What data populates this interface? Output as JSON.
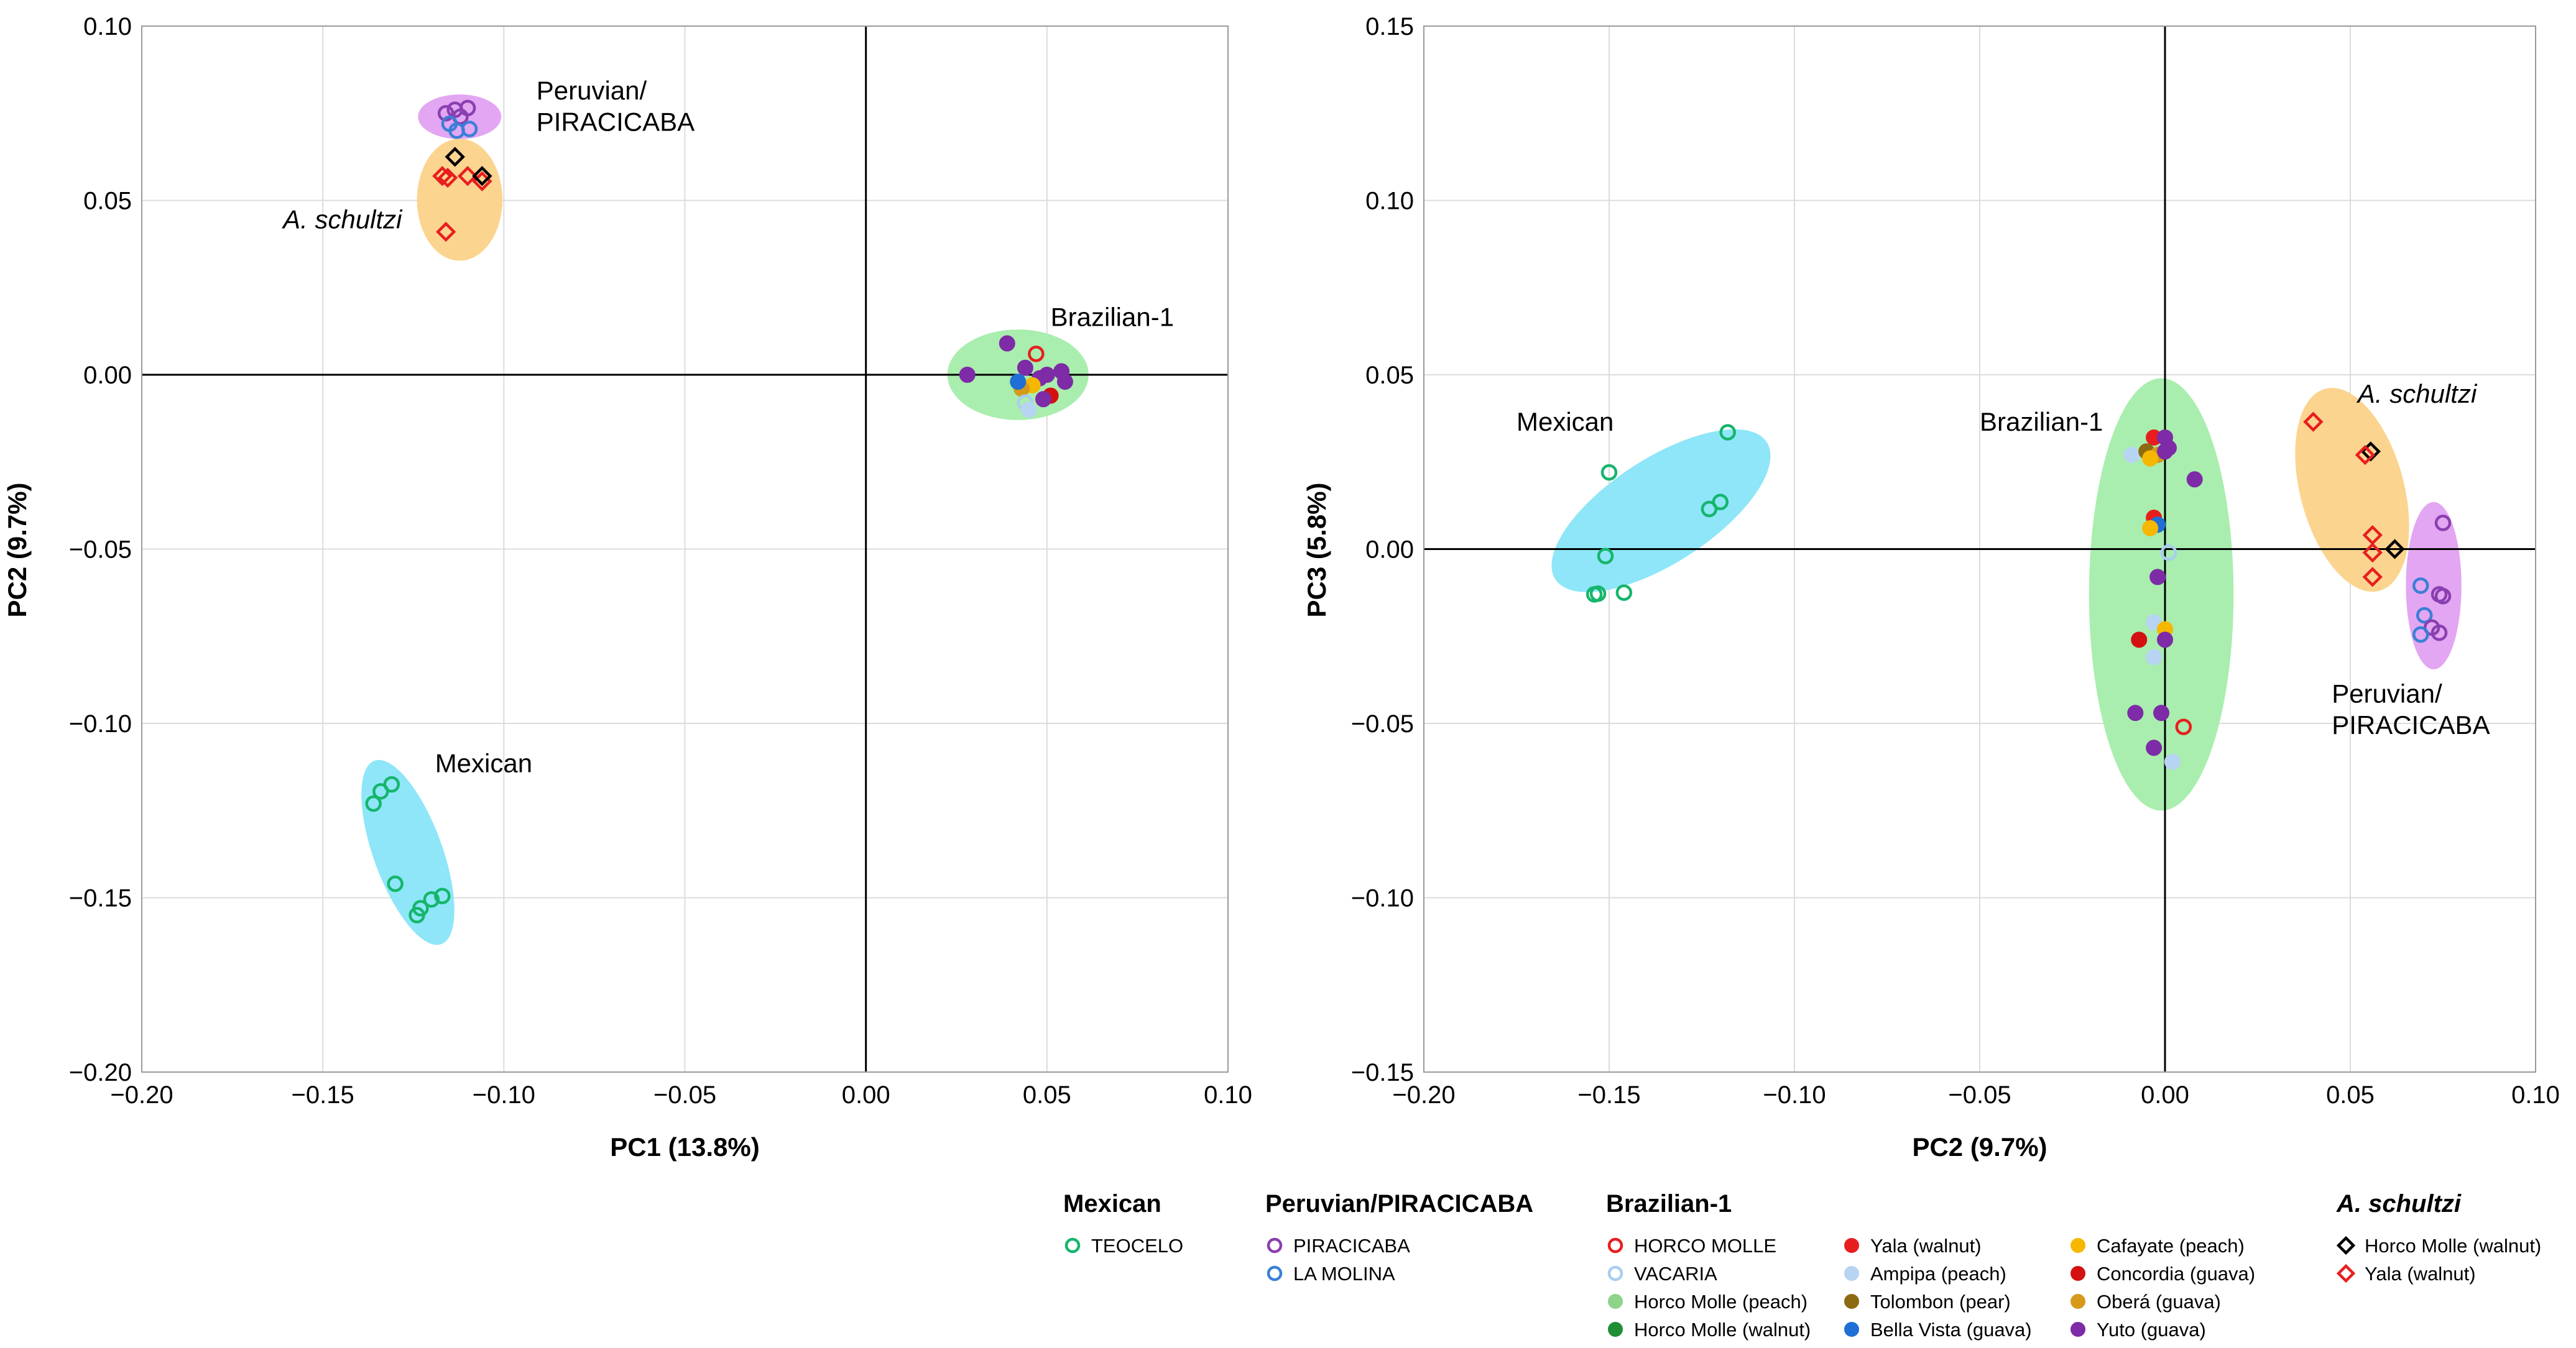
{
  "colors": {
    "teocelo": "#16b56c",
    "piracicaba": "#8a3fb0",
    "la_molina": "#3a7fd6",
    "horco_molle": "#e81e1e",
    "vacaria": "#a8cdf0",
    "horco_molle_peach": "#8dd38a",
    "horco_molle_walnut": "#1f8f35",
    "yala_walnut": "#e81e1e",
    "ampipa_peach": "#b7d4f2",
    "tolombon_pear": "#8c6a12",
    "bella_vista_guava": "#1f6fd6",
    "cafayate_peach": "#f5b700",
    "concordia_guava": "#d41111",
    "obera_guava": "#d69a1a",
    "yuto_guava": "#7d2ba6",
    "schultzi_horco": "#000000",
    "schultzi_yala": "#e81e1e",
    "ellipse_mexican": "#8ee6f8",
    "ellipse_peruvian": "#e3a6f2",
    "ellipse_schultzi": "#fbd48f",
    "ellipse_brazilian": "#a9eeae"
  },
  "chart_data": [
    {
      "type": "scatter",
      "xlabel": "PC1 (13.8%)",
      "ylabel": "PC2 (9.7%)",
      "xlim": [
        -0.2,
        0.1
      ],
      "ylim": [
        -0.2,
        0.1
      ],
      "xticks": [
        "−0.20",
        "−0.15",
        "−0.10",
        "−0.05",
        "0.00",
        "0.05",
        "0.10"
      ],
      "yticks": [
        "0.10",
        "0.05",
        "0.00",
        "−0.05",
        "−0.10",
        "−0.15",
        "−0.20"
      ],
      "group_labels": [
        {
          "text": "Peruvian/",
          "x": -0.091,
          "y": 0.079
        },
        {
          "text": "PIRACICABA",
          "x": -0.091,
          "y": 0.07
        },
        {
          "text": "A. schultzi",
          "x": -0.161,
          "y": 0.042,
          "italic": true
        },
        {
          "text": "Brazilian-1",
          "x": 0.051,
          "y": 0.014
        },
        {
          "text": "Mexican",
          "x": -0.119,
          "y": -0.114
        }
      ],
      "ellipses": [
        {
          "group": "peruvian",
          "color": "ellipse_peruvian",
          "cx": -0.1122,
          "cy": 0.074,
          "rx": 0.0115,
          "ry": 0.0064,
          "angle": 0
        },
        {
          "group": "schultzi",
          "color": "ellipse_schultzi",
          "cx": -0.1122,
          "cy": 0.0502,
          "rx": 0.0118,
          "ry": 0.0175,
          "angle": 0
        },
        {
          "group": "brazilian",
          "color": "ellipse_brazilian",
          "cx": 0.042,
          "cy": 0.0,
          "rx": 0.0195,
          "ry": 0.013,
          "angle": 0
        },
        {
          "group": "mexican",
          "color": "ellipse_mexican",
          "cx": -0.1265,
          "cy": -0.137,
          "rx": 0.0095,
          "ry": 0.028,
          "angle": -20
        }
      ],
      "points": [
        {
          "x": -0.1135,
          "y": 0.076,
          "s": "piracicaba",
          "m": "co"
        },
        {
          "x": -0.116,
          "y": 0.075,
          "s": "piracicaba",
          "m": "co"
        },
        {
          "x": -0.11,
          "y": 0.0765,
          "s": "piracicaba",
          "m": "co"
        },
        {
          "x": -0.112,
          "y": 0.074,
          "s": "piracicaba",
          "m": "co"
        },
        {
          "x": -0.115,
          "y": 0.072,
          "s": "la_molina",
          "m": "co"
        },
        {
          "x": -0.113,
          "y": 0.07,
          "s": "la_molina",
          "m": "co"
        },
        {
          "x": -0.1095,
          "y": 0.0705,
          "s": "la_molina",
          "m": "co"
        },
        {
          "x": -0.1135,
          "y": 0.0625,
          "s": "schultzi_horco",
          "m": "do"
        },
        {
          "x": -0.117,
          "y": 0.057,
          "s": "schultzi_yala",
          "m": "do"
        },
        {
          "x": -0.1155,
          "y": 0.0565,
          "s": "schultzi_yala",
          "m": "do"
        },
        {
          "x": -0.11,
          "y": 0.057,
          "s": "schultzi_yala",
          "m": "do"
        },
        {
          "x": -0.106,
          "y": 0.0555,
          "s": "schultzi_yala",
          "m": "do"
        },
        {
          "x": -0.106,
          "y": 0.057,
          "s": "schultzi_horco",
          "m": "do"
        },
        {
          "x": -0.116,
          "y": 0.041,
          "s": "schultzi_yala",
          "m": "do"
        },
        {
          "x": 0.039,
          "y": 0.009,
          "s": "yuto_guava",
          "m": "cf"
        },
        {
          "x": 0.047,
          "y": 0.006,
          "s": "horco_molle",
          "m": "co"
        },
        {
          "x": 0.028,
          "y": 0.0,
          "s": "yuto_guava",
          "m": "cf"
        },
        {
          "x": 0.044,
          "y": 0.002,
          "s": "yuto_guava",
          "m": "cf"
        },
        {
          "x": 0.054,
          "y": 0.001,
          "s": "yuto_guava",
          "m": "cf"
        },
        {
          "x": 0.05,
          "y": 0.0,
          "s": "yuto_guava",
          "m": "cf"
        },
        {
          "x": 0.048,
          "y": -0.001,
          "s": "yuto_guava",
          "m": "cf"
        },
        {
          "x": 0.055,
          "y": -0.002,
          "s": "yuto_guava",
          "m": "cf"
        },
        {
          "x": 0.046,
          "y": -0.003,
          "s": "cafayate_peach",
          "m": "cf"
        },
        {
          "x": 0.043,
          "y": -0.004,
          "s": "obera_guava",
          "m": "cf"
        },
        {
          "x": 0.051,
          "y": -0.006,
          "s": "concordia_guava",
          "m": "cf"
        },
        {
          "x": 0.049,
          "y": -0.007,
          "s": "yuto_guava",
          "m": "cf"
        },
        {
          "x": 0.044,
          "y": -0.008,
          "s": "vacaria",
          "m": "co"
        },
        {
          "x": 0.045,
          "y": -0.01,
          "s": "ampipa_peach",
          "m": "cf"
        },
        {
          "x": 0.042,
          "y": -0.002,
          "s": "bella_vista_guava",
          "m": "cf"
        },
        {
          "x": -0.131,
          "y": -0.1175,
          "s": "teocelo",
          "m": "co"
        },
        {
          "x": -0.134,
          "y": -0.1195,
          "s": "teocelo",
          "m": "co"
        },
        {
          "x": -0.136,
          "y": -0.123,
          "s": "teocelo",
          "m": "co"
        },
        {
          "x": -0.13,
          "y": -0.146,
          "s": "teocelo",
          "m": "co"
        },
        {
          "x": -0.12,
          "y": -0.1505,
          "s": "teocelo",
          "m": "co"
        },
        {
          "x": -0.117,
          "y": -0.1495,
          "s": "teocelo",
          "m": "co"
        },
        {
          "x": -0.123,
          "y": -0.153,
          "s": "teocelo",
          "m": "co"
        },
        {
          "x": -0.124,
          "y": -0.155,
          "s": "teocelo",
          "m": "co"
        }
      ]
    },
    {
      "type": "scatter",
      "xlabel": "PC2 (9.7%)",
      "ylabel": "PC3 (5.8%)",
      "xlim": [
        -0.2,
        0.1
      ],
      "ylim": [
        -0.15,
        0.15
      ],
      "xticks": [
        "−0.20",
        "−0.15",
        "−0.10",
        "−0.05",
        "0.00",
        "0.05",
        "0.10"
      ],
      "yticks": [
        "0.15",
        "0.10",
        "0.05",
        "0.00",
        "−0.05",
        "−0.10",
        "−0.15"
      ],
      "group_labels": [
        {
          "text": "Mexican",
          "x": -0.175,
          "y": 0.034
        },
        {
          "text": "Brazilian-1",
          "x": -0.05,
          "y": 0.034
        },
        {
          "text": "A. schultzi",
          "x": 0.052,
          "y": 0.042,
          "italic": true
        },
        {
          "text": "Peruvian/",
          "x": 0.045,
          "y": -0.044
        },
        {
          "text": "PIRACICABA",
          "x": 0.045,
          "y": -0.053
        }
      ],
      "ellipses": [
        {
          "group": "mexican",
          "color": "ellipse_mexican",
          "cx": -0.136,
          "cy": 0.011,
          "rx": 0.034,
          "ry": 0.015,
          "angle": -33
        },
        {
          "group": "brazilian",
          "color": "ellipse_brazilian",
          "cx": -0.001,
          "cy": -0.013,
          "rx": 0.0195,
          "ry": 0.062,
          "angle": 0
        },
        {
          "group": "schultzi",
          "color": "ellipse_schultzi",
          "cx": 0.0505,
          "cy": 0.017,
          "rx": 0.014,
          "ry": 0.03,
          "angle": -15
        },
        {
          "group": "peruvian",
          "color": "ellipse_peruvian",
          "cx": 0.0725,
          "cy": -0.0105,
          "rx": 0.0075,
          "ry": 0.024,
          "angle": 0
        }
      ],
      "points": [
        {
          "x": -0.118,
          "y": 0.0335,
          "s": "teocelo",
          "m": "co"
        },
        {
          "x": -0.15,
          "y": 0.022,
          "s": "teocelo",
          "m": "co"
        },
        {
          "x": -0.12,
          "y": 0.0135,
          "s": "teocelo",
          "m": "co"
        },
        {
          "x": -0.123,
          "y": 0.0115,
          "s": "teocelo",
          "m": "co"
        },
        {
          "x": -0.151,
          "y": -0.002,
          "s": "teocelo",
          "m": "co"
        },
        {
          "x": -0.146,
          "y": -0.0125,
          "s": "teocelo",
          "m": "co"
        },
        {
          "x": -0.154,
          "y": -0.013,
          "s": "teocelo",
          "m": "co"
        },
        {
          "x": -0.153,
          "y": -0.0128,
          "s": "teocelo",
          "m": "co"
        },
        {
          "x": -0.003,
          "y": 0.032,
          "s": "yala_walnut",
          "m": "cf"
        },
        {
          "x": 0.0,
          "y": 0.032,
          "s": "yuto_guava",
          "m": "cf"
        },
        {
          "x": -0.009,
          "y": 0.027,
          "s": "ampipa_peach",
          "m": "cf"
        },
        {
          "x": -0.005,
          "y": 0.028,
          "s": "tolombon_pear",
          "m": "cf"
        },
        {
          "x": -0.002,
          "y": 0.027,
          "s": "obera_guava",
          "m": "cf"
        },
        {
          "x": 0.0,
          "y": 0.028,
          "s": "yuto_guava",
          "m": "cf"
        },
        {
          "x": -0.004,
          "y": 0.026,
          "s": "cafayate_peach",
          "m": "cf"
        },
        {
          "x": 0.001,
          "y": 0.029,
          "s": "yuto_guava",
          "m": "cf"
        },
        {
          "x": 0.008,
          "y": 0.02,
          "s": "yuto_guava",
          "m": "cf"
        },
        {
          "x": -0.003,
          "y": 0.009,
          "s": "yala_walnut",
          "m": "cf"
        },
        {
          "x": -0.002,
          "y": 0.007,
          "s": "bella_vista_guava",
          "m": "cf"
        },
        {
          "x": -0.004,
          "y": 0.006,
          "s": "cafayate_peach",
          "m": "cf"
        },
        {
          "x": 0.001,
          "y": -0.001,
          "s": "vacaria",
          "m": "co"
        },
        {
          "x": -0.002,
          "y": -0.008,
          "s": "yuto_guava",
          "m": "cf"
        },
        {
          "x": -0.003,
          "y": -0.021,
          "s": "ampipa_peach",
          "m": "cf"
        },
        {
          "x": 0.0,
          "y": -0.023,
          "s": "cafayate_peach",
          "m": "cf"
        },
        {
          "x": -0.007,
          "y": -0.026,
          "s": "concordia_guava",
          "m": "cf"
        },
        {
          "x": 0.0,
          "y": -0.026,
          "s": "yuto_guava",
          "m": "cf"
        },
        {
          "x": -0.003,
          "y": -0.031,
          "s": "ampipa_peach",
          "m": "cf"
        },
        {
          "x": -0.008,
          "y": -0.047,
          "s": "yuto_guava",
          "m": "cf"
        },
        {
          "x": -0.001,
          "y": -0.047,
          "s": "yuto_guava",
          "m": "cf"
        },
        {
          "x": 0.005,
          "y": -0.051,
          "s": "horco_molle",
          "m": "co"
        },
        {
          "x": -0.003,
          "y": -0.057,
          "s": "yuto_guava",
          "m": "cf"
        },
        {
          "x": 0.002,
          "y": -0.061,
          "s": "ampipa_peach",
          "m": "cf"
        },
        {
          "x": 0.04,
          "y": 0.0365,
          "s": "schultzi_yala",
          "m": "do"
        },
        {
          "x": 0.0555,
          "y": 0.028,
          "s": "schultzi_horco",
          "m": "do"
        },
        {
          "x": 0.054,
          "y": 0.027,
          "s": "schultzi_yala",
          "m": "do"
        },
        {
          "x": 0.056,
          "y": 0.004,
          "s": "schultzi_yala",
          "m": "do"
        },
        {
          "x": 0.056,
          "y": -0.001,
          "s": "schultzi_yala",
          "m": "do"
        },
        {
          "x": 0.062,
          "y": 0.0,
          "s": "schultzi_horco",
          "m": "do"
        },
        {
          "x": 0.056,
          "y": -0.008,
          "s": "schultzi_yala",
          "m": "do"
        },
        {
          "x": 0.075,
          "y": 0.0075,
          "s": "piracicaba",
          "m": "co"
        },
        {
          "x": 0.069,
          "y": -0.0105,
          "s": "la_molina",
          "m": "co"
        },
        {
          "x": 0.074,
          "y": -0.013,
          "s": "piracicaba",
          "m": "co"
        },
        {
          "x": 0.075,
          "y": -0.0135,
          "s": "piracicaba",
          "m": "co"
        },
        {
          "x": 0.07,
          "y": -0.019,
          "s": "la_molina",
          "m": "co"
        },
        {
          "x": 0.072,
          "y": -0.0225,
          "s": "piracicaba",
          "m": "co"
        },
        {
          "x": 0.074,
          "y": -0.024,
          "s": "piracicaba",
          "m": "co"
        },
        {
          "x": 0.069,
          "y": -0.0245,
          "s": "la_molina",
          "m": "co"
        }
      ]
    }
  ],
  "legend": {
    "groups": [
      {
        "title": "Mexican",
        "columns": [
          [
            {
              "label": "TEOCELO",
              "s": "teocelo",
              "m": "co"
            }
          ]
        ]
      },
      {
        "title": "Peruvian/PIRACICABA",
        "columns": [
          [
            {
              "label": "PIRACICABA",
              "s": "piracicaba",
              "m": "co"
            },
            {
              "label": "LA MOLINA",
              "s": "la_molina",
              "m": "co"
            }
          ]
        ]
      },
      {
        "title": "Brazilian-1",
        "columns": [
          [
            {
              "label": "HORCO MOLLE",
              "s": "horco_molle",
              "m": "co"
            },
            {
              "label": "VACARIA",
              "s": "vacaria",
              "m": "co"
            },
            {
              "label": "Horco Molle (peach)",
              "s": "horco_molle_peach",
              "m": "cf"
            },
            {
              "label": "Horco Molle (walnut)",
              "s": "horco_molle_walnut",
              "m": "cf"
            }
          ],
          [
            {
              "label": "Yala (walnut)",
              "s": "yala_walnut",
              "m": "cf"
            },
            {
              "label": "Ampipa (peach)",
              "s": "ampipa_peach",
              "m": "cf"
            },
            {
              "label": "Tolombon (pear)",
              "s": "tolombon_pear",
              "m": "cf"
            },
            {
              "label": "Bella Vista (guava)",
              "s": "bella_vista_guava",
              "m": "cf"
            }
          ],
          [
            {
              "label": "Cafayate (peach)",
              "s": "cafayate_peach",
              "m": "cf"
            },
            {
              "label": "Concordia (guava)",
              "s": "concordia_guava",
              "m": "cf"
            },
            {
              "label": "Oberá (guava)",
              "s": "obera_guava",
              "m": "cf"
            },
            {
              "label": "Yuto (guava)",
              "s": "yuto_guava",
              "m": "cf"
            }
          ]
        ]
      },
      {
        "title": "A. schultzi",
        "italic": true,
        "columns": [
          [
            {
              "label": "Horco Molle (walnut)",
              "s": "schultzi_horco",
              "m": "do"
            },
            {
              "label": "Yala (walnut)",
              "s": "schultzi_yala",
              "m": "do"
            }
          ]
        ]
      }
    ]
  }
}
